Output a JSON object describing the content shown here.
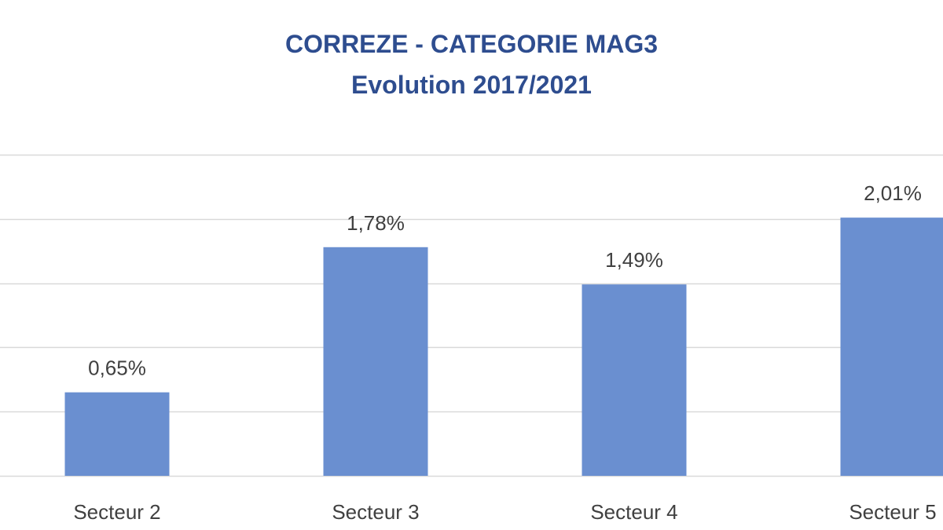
{
  "chart_data": {
    "type": "bar",
    "title": "CORREZE - CATEGORIE MAG3",
    "subtitle": "Evolution 2017/2021",
    "categories": [
      "Secteur 2",
      "Secteur 3",
      "Secteur 4",
      "Secteur 5"
    ],
    "values": [
      0.65,
      1.78,
      1.49,
      2.01
    ],
    "data_labels": [
      "0,65%",
      "1,78%",
      "1,49%",
      "2,01%"
    ],
    "ylim": [
      0,
      2.5
    ],
    "grid": true,
    "legend": "none",
    "colors": {
      "bar": "#6A8FD0",
      "title": "#2E4D8F",
      "grid": "#D9D9D9",
      "text": "#404040"
    }
  }
}
